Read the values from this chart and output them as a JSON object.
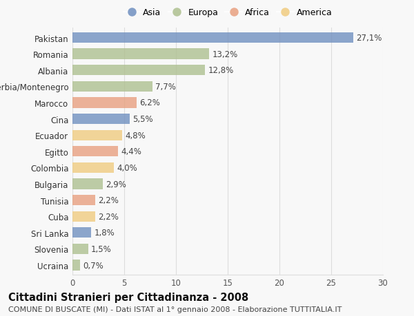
{
  "countries": [
    "Pakistan",
    "Romania",
    "Albania",
    "Serbia/Montenegro",
    "Marocco",
    "Cina",
    "Ecuador",
    "Egitto",
    "Colombia",
    "Bulgaria",
    "Tunisia",
    "Cuba",
    "Sri Lanka",
    "Slovenia",
    "Ucraina"
  ],
  "values": [
    27.1,
    13.2,
    12.8,
    7.7,
    6.2,
    5.5,
    4.8,
    4.4,
    4.0,
    2.9,
    2.2,
    2.2,
    1.8,
    1.5,
    0.7
  ],
  "labels": [
    "27,1%",
    "13,2%",
    "12,8%",
    "7,7%",
    "6,2%",
    "5,5%",
    "4,8%",
    "4,4%",
    "4,0%",
    "2,9%",
    "2,2%",
    "2,2%",
    "1,8%",
    "1,5%",
    "0,7%"
  ],
  "continents": [
    "Asia",
    "Europa",
    "Europa",
    "Europa",
    "Africa",
    "Asia",
    "America",
    "Africa",
    "America",
    "Europa",
    "Africa",
    "America",
    "Asia",
    "Europa",
    "Europa"
  ],
  "colors": {
    "Asia": "#7090c0",
    "Europa": "#aec090",
    "Africa": "#e8a080",
    "America": "#f0cc80"
  },
  "legend_order": [
    "Asia",
    "Europa",
    "Africa",
    "America"
  ],
  "xlim": [
    0,
    30
  ],
  "xticks": [
    0,
    5,
    10,
    15,
    20,
    25,
    30
  ],
  "title": "Cittadini Stranieri per Cittadinanza - 2008",
  "subtitle": "COMUNE DI BUSCATE (MI) - Dati ISTAT al 1° gennaio 2008 - Elaborazione TUTTITALIA.IT",
  "background_color": "#f8f8f8",
  "grid_color": "#dddddd",
  "bar_height": 0.65,
  "label_fontsize": 8.5,
  "ytick_fontsize": 8.5,
  "xtick_fontsize": 8.5,
  "title_fontsize": 10.5,
  "subtitle_fontsize": 8.0,
  "legend_fontsize": 9.0
}
